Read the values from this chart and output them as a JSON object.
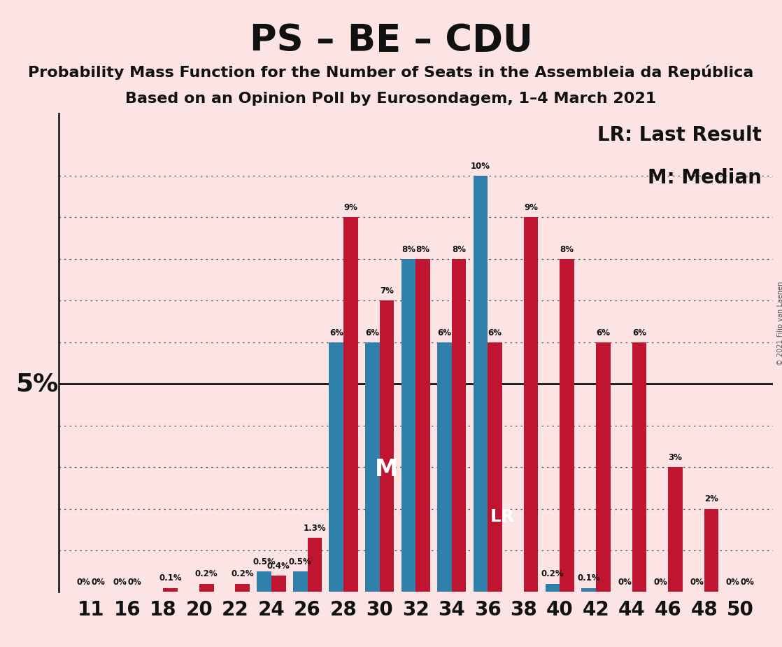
{
  "title": "PS – BE – CDU",
  "subtitle1": "Probability Mass Function for the Number of Seats in the Assembleia da República",
  "subtitle2": "Based on an Opinion Poll by Eurosondagem, 1–4 March 2021",
  "copyright": "© 2021 Filip van Laenen",
  "legend_lr": "LR: Last Result",
  "legend_m": "M: Median",
  "background_color": "#fce4e4",
  "bar_color_blue": "#2e7faa",
  "bar_color_red": "#c01530",
  "seats": [
    11,
    16,
    18,
    20,
    22,
    24,
    26,
    28,
    30,
    32,
    34,
    36,
    38,
    40,
    42,
    44,
    46,
    48,
    50
  ],
  "blue_values": [
    0.0,
    0.0,
    0.0,
    0.0,
    0.0,
    0.5,
    0.5,
    6.0,
    6.0,
    8.0,
    6.0,
    10.0,
    0.0,
    0.2,
    0.1,
    0.0,
    0.0,
    0.0,
    0.0
  ],
  "red_values": [
    0.0,
    0.0,
    0.1,
    0.2,
    0.2,
    0.4,
    1.3,
    9.0,
    7.0,
    8.0,
    8.0,
    6.0,
    9.0,
    8.0,
    6.0,
    6.0,
    3.0,
    2.0,
    0.0
  ],
  "blue_labels": [
    "0%",
    "0%",
    "",
    "",
    "",
    "0.5%",
    "0.5%",
    "6%",
    "6%",
    "8%",
    "6%",
    "10%",
    "",
    "0.2%",
    "0.1%",
    "0%",
    "0%",
    "0%",
    "0%"
  ],
  "red_labels": [
    "0%",
    "0%",
    "0.1%",
    "0.2%",
    "0.2%",
    "0.4%",
    "1.3%",
    "9%",
    "7%",
    "8%",
    "8%",
    "6%",
    "9%",
    "8%",
    "6%",
    "6%",
    "3%",
    "2%",
    "0%"
  ],
  "median_seat": 30,
  "lr_seat": 38,
  "y5pct": 5.0,
  "ylim_max": 11.5,
  "dotted_y_values": [
    1,
    2,
    3,
    4,
    6,
    7,
    8,
    9,
    10
  ],
  "label_fontsize": 8.5,
  "tick_fontsize": 20,
  "title_fontsize": 38,
  "subtitle_fontsize": 16,
  "legend_fontsize": 20
}
